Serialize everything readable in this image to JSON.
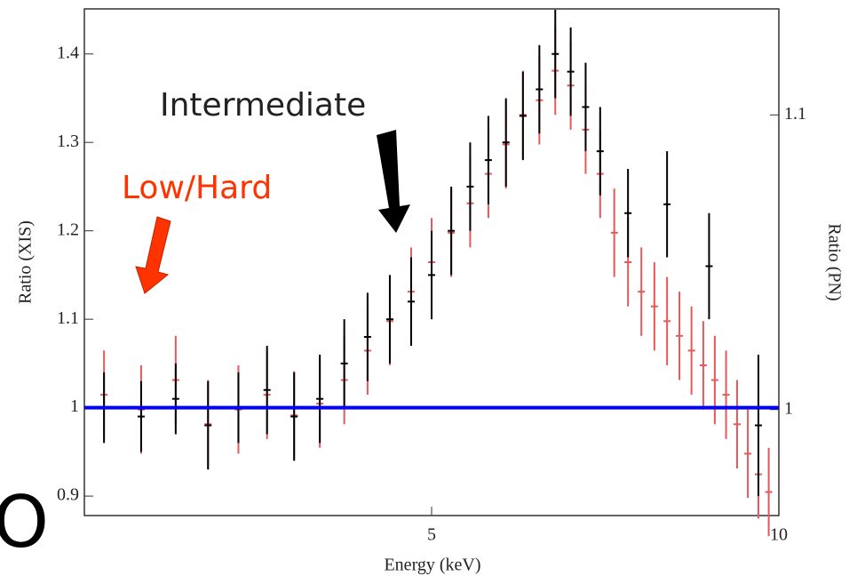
{
  "chart_data": {
    "type": "errorbar",
    "xlabel": "Energy (keV)",
    "ylabel": "Ratio (XIS)",
    "y2label": "Ratio (PN)",
    "annotations": [
      "Intermediate",
      "Low/Hard",
      "O"
    ],
    "xscale": "log",
    "xlim": [
      2.5,
      10
    ],
    "xticks": [
      5,
      10
    ],
    "ylim": [
      0.878,
      1.451
    ],
    "yticks": [
      0.9,
      1,
      1.1,
      1.2,
      1.3,
      1.4
    ],
    "y2lim": [
      0.964,
      1.136
    ],
    "y2ticks": [
      1,
      1.1
    ],
    "reference_line": {
      "value": 1,
      "color": "#0000ff"
    },
    "series": [
      {
        "color": "#e8585a",
        "axis": "y2",
        "x": [
          2.6,
          2.8,
          3.0,
          3.2,
          3.4,
          3.6,
          3.8,
          4.0,
          4.2,
          4.4,
          4.6,
          4.8,
          5.0,
          5.2,
          5.4,
          5.6,
          5.8,
          6.0,
          6.2,
          6.4,
          6.6,
          6.8,
          7.0,
          7.2,
          7.4,
          7.6,
          7.8,
          8.0,
          8.2,
          8.4,
          8.6,
          8.8,
          9.0,
          9.2,
          9.4,
          9.6,
          9.8
        ],
        "values": [
          1.005,
          1.0,
          1.01,
          0.995,
          1.0,
          1.005,
          0.998,
          1.002,
          1.01,
          1.02,
          1.03,
          1.04,
          1.05,
          1.06,
          1.07,
          1.08,
          1.09,
          1.1,
          1.105,
          1.115,
          1.11,
          1.095,
          1.08,
          1.06,
          1.05,
          1.04,
          1.035,
          1.03,
          1.025,
          1.02,
          1.015,
          1.01,
          1.005,
          0.995,
          0.985,
          0.978,
          0.972
        ],
        "errors": [
          0.015,
          0.015,
          0.015,
          0.015,
          0.015,
          0.015,
          0.015,
          0.015,
          0.015,
          0.015,
          0.015,
          0.015,
          0.015,
          0.015,
          0.015,
          0.015,
          0.015,
          0.015,
          0.015,
          0.015,
          0.015,
          0.015,
          0.015,
          0.015,
          0.015,
          0.015,
          0.015,
          0.015,
          0.015,
          0.015,
          0.015,
          0.015,
          0.015,
          0.015,
          0.015,
          0.015,
          0.015
        ]
      },
      {
        "color": "#000000",
        "axis": "y",
        "x": [
          2.6,
          2.8,
          3.0,
          3.2,
          3.4,
          3.6,
          3.8,
          4.0,
          4.2,
          4.4,
          4.6,
          4.8,
          5.0,
          5.2,
          5.4,
          5.6,
          5.8,
          6.0,
          6.2,
          6.4,
          6.6,
          6.8,
          7.0,
          7.4,
          8.0,
          8.7,
          9.6
        ],
        "values": [
          1.0,
          0.99,
          1.01,
          0.98,
          1.0,
          1.02,
          0.99,
          1.01,
          1.05,
          1.08,
          1.1,
          1.12,
          1.15,
          1.2,
          1.25,
          1.28,
          1.3,
          1.33,
          1.36,
          1.4,
          1.38,
          1.34,
          1.29,
          1.22,
          1.23,
          1.16,
          0.98
        ],
        "errors": [
          0.04,
          0.04,
          0.04,
          0.05,
          0.04,
          0.05,
          0.05,
          0.05,
          0.05,
          0.05,
          0.05,
          0.05,
          0.05,
          0.05,
          0.05,
          0.05,
          0.05,
          0.05,
          0.05,
          0.05,
          0.05,
          0.05,
          0.05,
          0.05,
          0.06,
          0.06,
          0.08
        ]
      }
    ]
  }
}
